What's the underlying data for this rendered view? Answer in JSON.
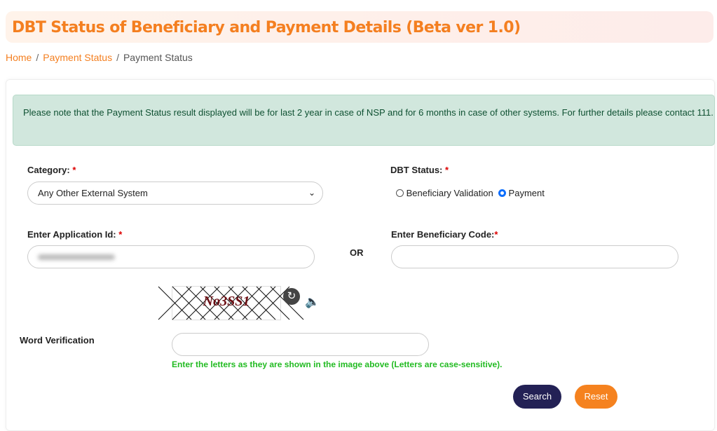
{
  "header": {
    "title": "DBT Status of Beneficiary and Payment Details (Beta ver 1.0)"
  },
  "breadcrumb": {
    "items": [
      "Home",
      "Payment Status",
      "Payment Status"
    ],
    "separator": "/"
  },
  "alert": {
    "text": "Please note that the Payment Status result displayed will be for last 2 year in case of NSP and for 6 months in case of other systems. For further details please contact 111."
  },
  "form": {
    "category": {
      "label": "Category:",
      "required": "*",
      "selected": "Any Other External System"
    },
    "dbt_status": {
      "label": "DBT Status:",
      "required": "*",
      "options": [
        {
          "label": "Beneficiary Validation",
          "checked": false
        },
        {
          "label": "Payment",
          "checked": true
        }
      ]
    },
    "application_id": {
      "label": "Enter Application Id:",
      "required": "*"
    },
    "or_label": "OR",
    "beneficiary_code": {
      "label": "Enter Beneficiary Code:",
      "required": "*",
      "value": ""
    },
    "captcha": {
      "text": "No3SS1"
    },
    "word_verification": {
      "label": "Word Verification",
      "value": "",
      "hint": "Enter the letters as they are shown in the image above (Letters are case-sensitive)."
    },
    "search_label": "Search",
    "reset_label": "Reset"
  },
  "colors": {
    "accent": "#f47f20",
    "search": "#232155",
    "reset": "#f5821f",
    "hint": "#22bb22",
    "alert_bg": "#d1e7dd"
  }
}
